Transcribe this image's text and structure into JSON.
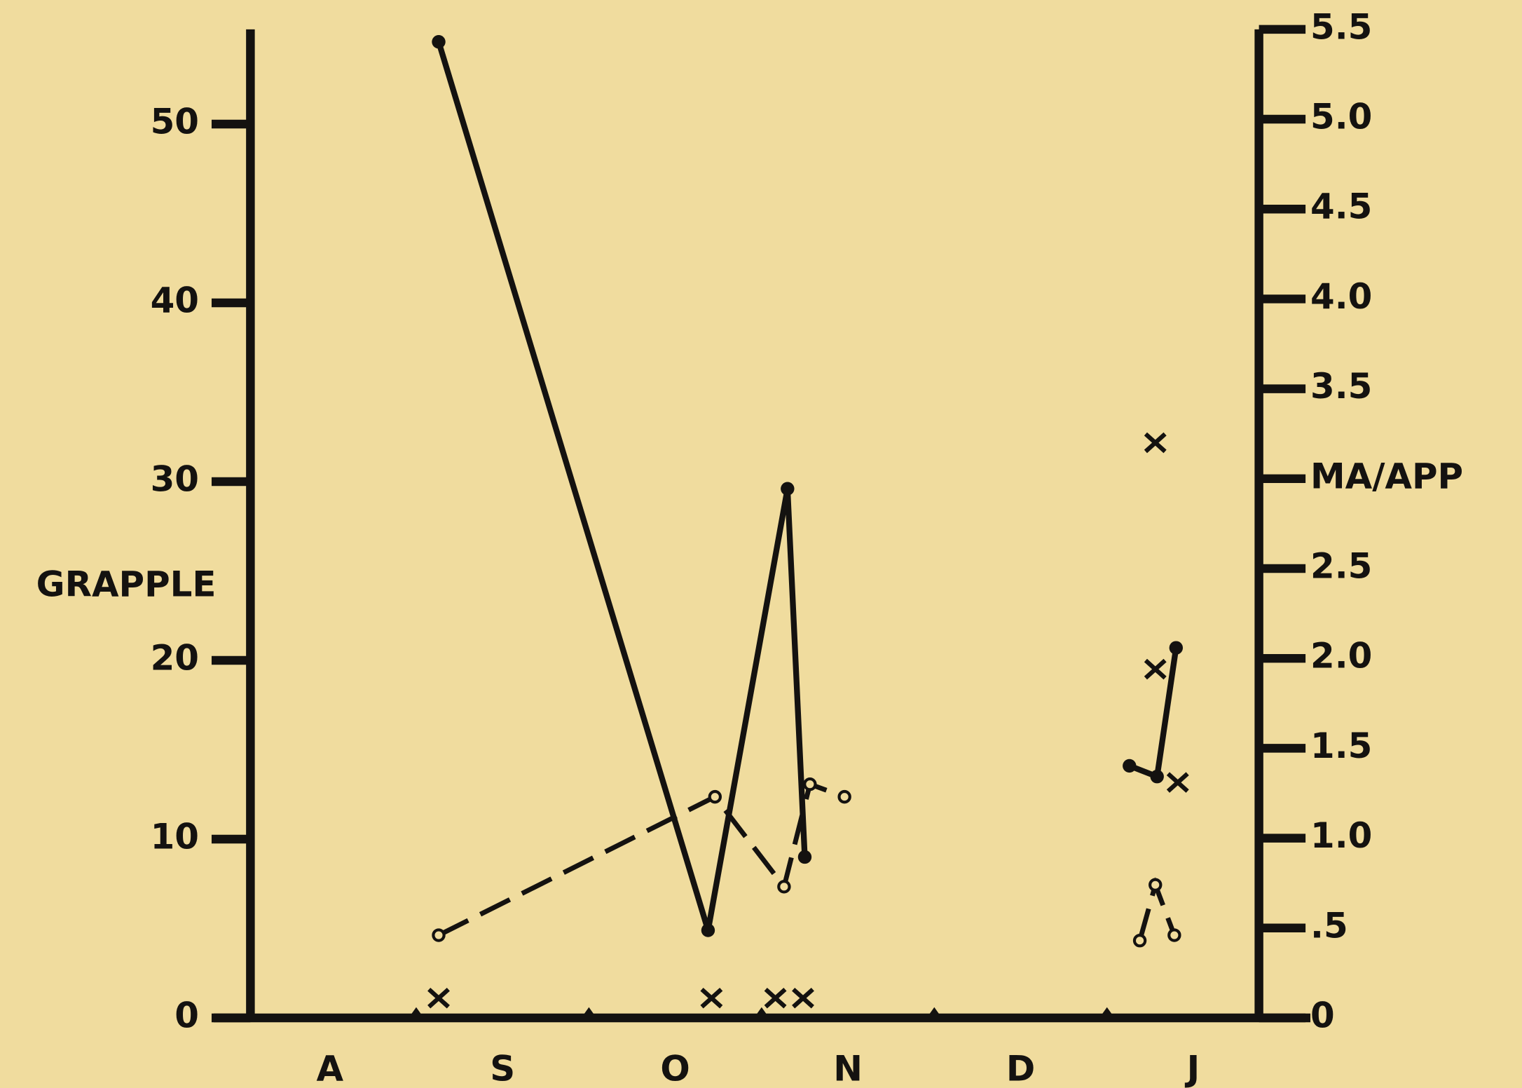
{
  "chart_data": {
    "type": "line",
    "y_label": "GRAPPLE",
    "xlim": [
      -0.46,
      5.38
    ],
    "xticks": [
      {
        "value": 0,
        "label": "A"
      },
      {
        "value": 1,
        "label": "S"
      },
      {
        "value": 2,
        "label": "O"
      },
      {
        "value": 3,
        "label": "N"
      },
      {
        "value": 4,
        "label": "D"
      },
      {
        "value": 5,
        "label": "J"
      }
    ],
    "xminor": [
      0.5,
      1.5,
      2.5,
      3.5,
      4.5
    ],
    "ylim": [
      0,
      55.3
    ],
    "yticks": [
      0,
      10,
      20,
      30,
      40,
      50
    ],
    "y2lim": [
      0,
      5.5
    ],
    "y2ticks": [
      0,
      {
        "value": 0.5,
        "label": ".5"
      },
      {
        "value": 1,
        "label": "1.0"
      },
      1.5,
      {
        "value": 2,
        "label": "2.0"
      },
      2.5,
      {
        "value": 3,
        "label": "MA/APP"
      },
      3.5,
      {
        "value": 4,
        "label": "4.0"
      },
      4.5,
      {
        "value": 5,
        "label": "5.0"
      },
      5.5
    ],
    "series": [
      {
        "color": "#141210",
        "style": "solid",
        "marker": "dot",
        "x": [
          0.63,
          2.19,
          2.65,
          2.75,
          null,
          4.63,
          4.79,
          4.9
        ],
        "values": [
          54.6,
          4.9,
          29.6,
          9.0,
          null,
          14.1,
          13.5,
          20.7
        ]
      },
      {
        "color": "#141210",
        "style": "dashed",
        "marker": "circle",
        "axis": "y2",
        "x": [
          0.63,
          2.23,
          2.63,
          2.78,
          2.98,
          null,
          4.69,
          4.78,
          4.89
        ],
        "values": [
          0.46,
          1.23,
          0.73,
          1.3,
          1.23,
          null,
          0.43,
          0.74,
          0.46
        ]
      },
      {
        "color": "#141210",
        "style": "none",
        "marker": "x",
        "axis": "y2",
        "x": [
          0.63,
          2.21,
          2.58,
          2.74,
          4.78,
          4.78,
          4.91
        ],
        "values": [
          0.11,
          0.11,
          0.11,
          0.11,
          3.2,
          1.94,
          1.31
        ]
      }
    ]
  }
}
